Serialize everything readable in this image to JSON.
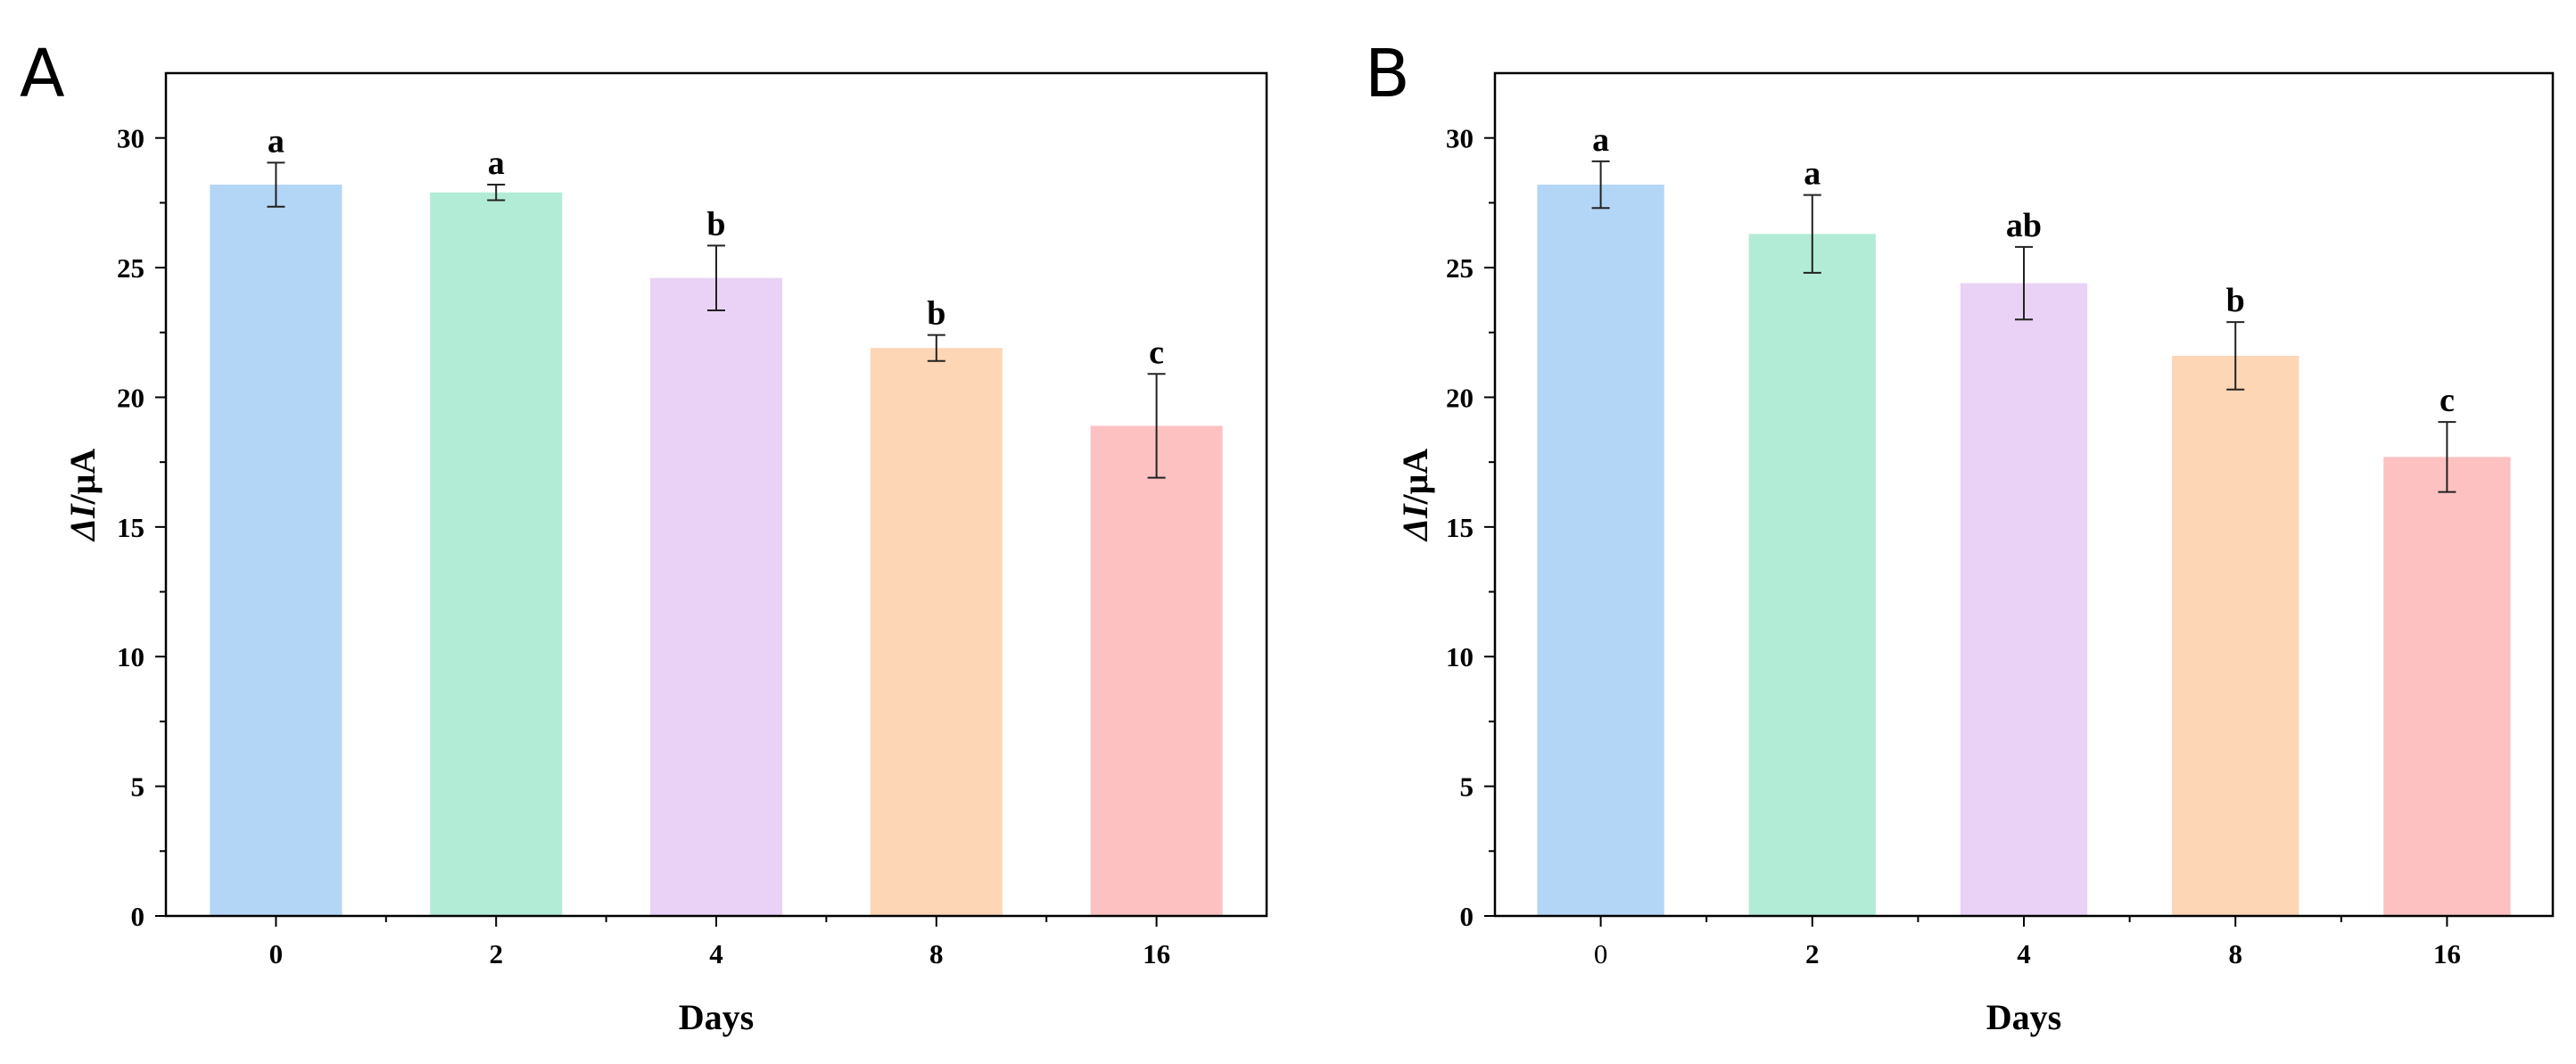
{
  "chart_data": [
    {
      "panel": "A",
      "type": "bar",
      "xlabel": "Days",
      "ylabel_italic": "ΔI",
      "ylabel_unit": "/μA",
      "ylim": [
        0,
        32.5
      ],
      "yticks": [
        0,
        5,
        10,
        15,
        20,
        25,
        30
      ],
      "categories": [
        "0",
        "2",
        "4",
        "8",
        "16"
      ],
      "values": [
        28.2,
        27.9,
        24.6,
        21.9,
        18.9
      ],
      "errors": [
        0.85,
        0.3,
        1.25,
        0.5,
        2.0
      ],
      "significance": [
        "a",
        "a",
        "b",
        "b",
        "c"
      ],
      "colors": [
        "#b3d5f6",
        "#b3ecd6",
        "#e9d2f5",
        "#fdd6b6",
        "#fdc1c1"
      ]
    },
    {
      "panel": "B",
      "type": "bar",
      "xlabel": "Days",
      "ylabel_italic": "ΔI",
      "ylabel_unit": "/μA",
      "ylim": [
        0,
        32.5
      ],
      "yticks": [
        0,
        5,
        10,
        15,
        20,
        25,
        30
      ],
      "categories": [
        "0",
        "2",
        "4",
        "8",
        "16"
      ],
      "values": [
        28.2,
        26.3,
        24.4,
        21.6,
        17.7
      ],
      "errors": [
        0.9,
        1.5,
        1.4,
        1.3,
        1.35
      ],
      "significance": [
        "a",
        "a",
        "ab",
        "b",
        "c"
      ],
      "colors": [
        "#b3d5f6",
        "#b3ecd6",
        "#e9d2f5",
        "#fdd6b6",
        "#fdc1c1"
      ]
    }
  ]
}
